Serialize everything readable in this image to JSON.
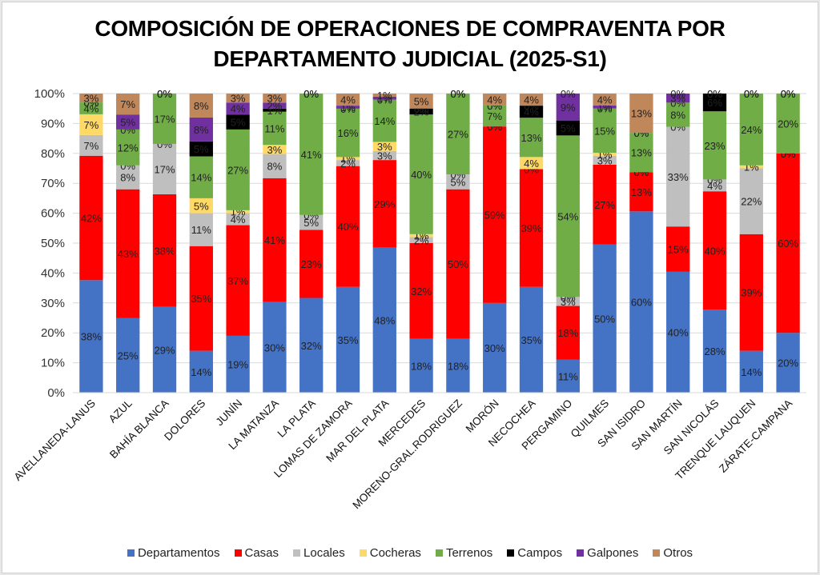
{
  "chart_data": {
    "type": "bar",
    "stacked": "percent",
    "title": "COMPOSICIÓN DE OPERACIONES DE COMPRAVENTA POR DEPARTAMENTO JUDICIAL (2025-S1)",
    "title_lines": [
      "COMPOSICIÓN DE OPERACIONES DE COMPRAVENTA POR",
      "DEPARTAMENTO JUDICIAL (2025-S1)"
    ],
    "xlabel": "",
    "ylabel": "",
    "ylim": [
      0,
      100
    ],
    "yticks": [
      "0%",
      "10%",
      "20%",
      "30%",
      "40%",
      "50%",
      "60%",
      "70%",
      "80%",
      "90%",
      "100%"
    ],
    "grid": true,
    "legend_position": "bottom",
    "categories": [
      "AVELLANEDA-LANUS",
      "AZUL",
      "BAHÍA BLANCA",
      "DOLORES",
      "JUNÍN",
      "LA MATANZA",
      "LA PLATA",
      "LOMAS DE ZAMORA",
      "MAR DEL PLATA",
      "MERCEDES",
      "MORENO-GRAL.RODRIGUEZ",
      "MORÓN",
      "NECOCHEA",
      "PERGAMINO",
      "QUILMES",
      "SAN ISIDRO",
      "SAN MARTÍN",
      "SAN NICOLÁS",
      "TRENQUE LAUQUEN",
      "ZÁRATE-CAMPANA"
    ],
    "series": [
      {
        "name": "Departamentos",
        "color": "#4472c4",
        "values": [
          38,
          25,
          29,
          14,
          19,
          30,
          32,
          35,
          48,
          18,
          18,
          30,
          35,
          11,
          50,
          60,
          40,
          28,
          14,
          20
        ]
      },
      {
        "name": "Casas",
        "color": "#ff0000",
        "values": [
          42,
          43,
          38,
          35,
          37,
          41,
          23,
          40,
          29,
          32,
          50,
          59,
          39,
          18,
          27,
          13,
          15,
          40,
          39,
          60
        ]
      },
      {
        "name": "Locales",
        "color": "#bfbfbf",
        "values": [
          7,
          8,
          17,
          11,
          4,
          8,
          5,
          2,
          3,
          2,
          5,
          0,
          0,
          3,
          3,
          0,
          33,
          4,
          22,
          0
        ]
      },
      {
        "name": "Cocheras",
        "color": "#ffd966",
        "values": [
          7,
          0,
          0,
          5,
          1,
          3,
          0,
          1,
          3,
          1,
          0,
          0,
          4,
          0,
          1,
          0,
          0,
          0,
          1,
          0
        ]
      },
      {
        "name": "Terrenos",
        "color": "#70ad47",
        "values": [
          4,
          12,
          17,
          14,
          27,
          11,
          41,
          16,
          14,
          40,
          27,
          7,
          13,
          54,
          15,
          13,
          8,
          23,
          24,
          20
        ]
      },
      {
        "name": "Campos",
        "color": "#000000",
        "values": [
          0,
          0,
          0,
          5,
          5,
          1,
          0,
          0,
          0,
          2,
          0,
          0,
          4,
          5,
          0,
          0,
          0,
          6,
          0,
          0
        ]
      },
      {
        "name": "Galpones",
        "color": "#7030a0",
        "values": [
          0,
          5,
          0,
          8,
          4,
          2,
          0,
          1,
          1,
          0,
          0,
          0,
          0,
          9,
          1,
          0,
          3,
          0,
          0,
          0
        ]
      },
      {
        "name": "Otros",
        "color": "#c0875a",
        "values": [
          3,
          7,
          0,
          8,
          3,
          3,
          0,
          4,
          1,
          5,
          0,
          4,
          4,
          0,
          4,
          13,
          0,
          0,
          0,
          0
        ]
      }
    ]
  }
}
